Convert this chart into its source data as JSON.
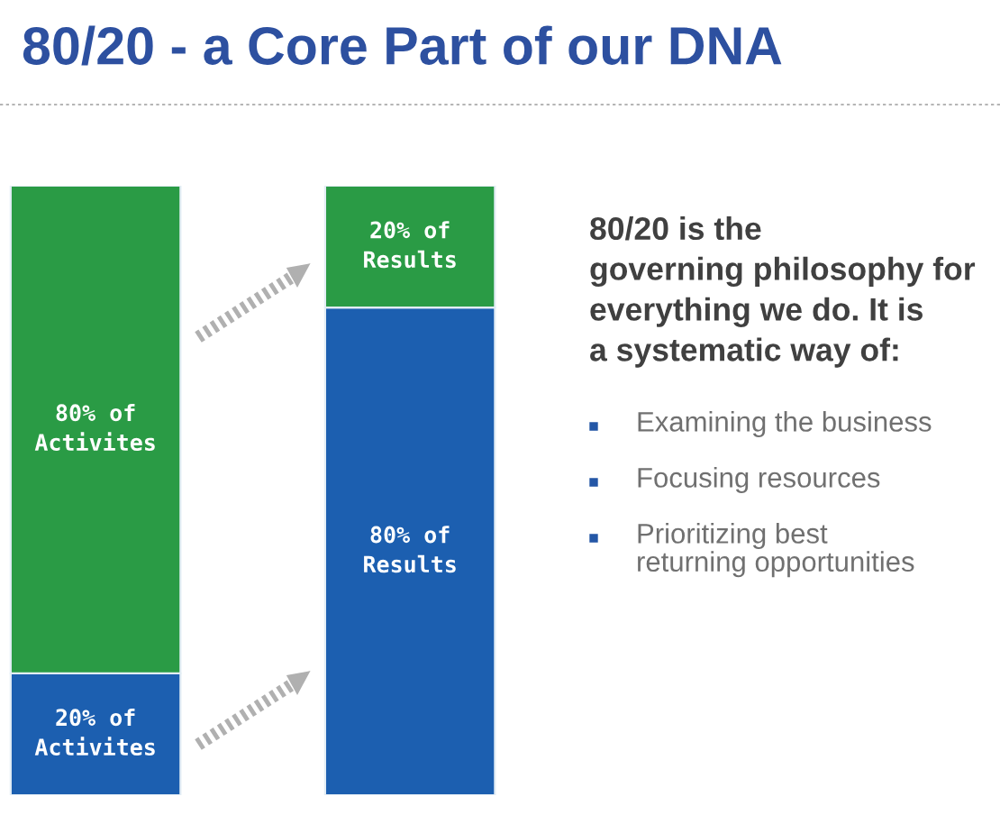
{
  "chart_data": {
    "type": "bar",
    "title": "80/20 - a Core Part of our DNA",
    "categories": [
      null,
      null
    ],
    "stacked": true,
    "series": [
      {
        "color": "#1c5fb0",
        "values": [
          20,
          80
        ],
        "value_labels": [
          "20% of\nActivites",
          "80% of\nResults"
        ]
      },
      {
        "color": "#2a9b45",
        "values": [
          80,
          20
        ],
        "value_labels": [
          "80% of\nActivites",
          "20% of\nResults"
        ]
      }
    ],
    "ylim": [
      0,
      100
    ],
    "tick_labels": false,
    "annotations": [
      "80/20 is the\ngoverning philosophy for\neverything we do. It is\na systematic way of:",
      "Examining the business",
      "Focusing resources",
      "Prioritizing best\nreturning opportunities"
    ]
  }
}
